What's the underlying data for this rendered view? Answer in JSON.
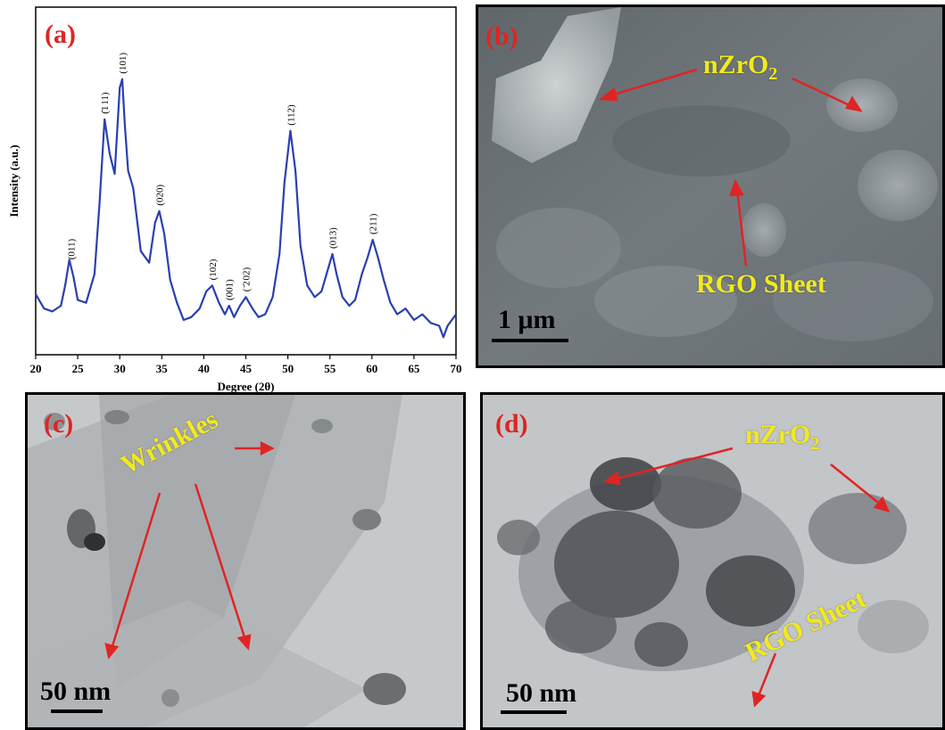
{
  "figure": {
    "panel_a": {
      "label": "(a)",
      "peak_labels": [
        "(011)",
        "(̄1 11)",
        "(101)",
        "(020)",
        "(102)",
        "(001)",
        "( ̄2 02)",
        "(112)",
        "(013)",
        "(211)"
      ]
    },
    "panel_b": {
      "label": "(b)",
      "annotation_particles": "nZrO",
      "annotation_particles_sub": "2",
      "annotation_sheet": "RGO Sheet",
      "scale_label": "1 μm"
    },
    "panel_c": {
      "label": "(c)",
      "annotation_wrinkles": "Wrinkles",
      "scale_label": "50 nm"
    },
    "panel_d": {
      "label": "(d)",
      "annotation_particles": "nZrO",
      "annotation_particles_sub": "2",
      "annotation_sheet": "RGO Sheet",
      "scale_label": "50 nm"
    },
    "colors": {
      "label_red": "#e02424",
      "annotation_yellow": "#f2ea1c",
      "arrow_red": "#e02424",
      "trace_blue": "#2a3fb0"
    }
  },
  "chart_data": {
    "type": "line",
    "title": "",
    "xlabel": "Degree (2θ)",
    "ylabel": "Intensity (a.u.)",
    "xlim": [
      20,
      70
    ],
    "ylim": [
      0,
      100
    ],
    "xticks": [
      20,
      25,
      30,
      35,
      40,
      45,
      50,
      55,
      60,
      65,
      70
    ],
    "y_tick_labels_shown": false,
    "grid": false,
    "series": [
      {
        "name": "",
        "x": [
          20,
          21,
          22,
          23,
          23.5,
          24,
          24.5,
          25,
          26,
          27,
          27.6,
          28.2,
          28.8,
          29.4,
          30.0,
          30.3,
          30.6,
          31.0,
          31.6,
          32.5,
          33.5,
          34.2,
          34.7,
          35.3,
          36.0,
          36.8,
          37.6,
          38.5,
          39.5,
          40.3,
          41.0,
          41.8,
          42.5,
          43.0,
          43.6,
          44.3,
          45.0,
          45.8,
          46.5,
          47.3,
          48.2,
          49.0,
          49.6,
          50.3,
          50.9,
          51.5,
          52.3,
          53.2,
          54.0,
          54.8,
          55.3,
          55.8,
          56.5,
          57.3,
          58.0,
          58.8,
          59.5,
          60.1,
          60.7,
          61.4,
          62.2,
          63.0,
          64.0,
          65.0,
          66.0,
          67.0,
          68.0,
          68.5,
          69.0,
          70.0
        ],
        "y": [
          13,
          8,
          7,
          9,
          16,
          25,
          19,
          11,
          10,
          20,
          45,
          74,
          62,
          55,
          85,
          88,
          72,
          56,
          50,
          28,
          24,
          38,
          42,
          34,
          18,
          10,
          4,
          5,
          8,
          14,
          16,
          10,
          6,
          9,
          5,
          9,
          12,
          8,
          5,
          6,
          12,
          27,
          52,
          70,
          56,
          30,
          16,
          12,
          14,
          22,
          27,
          20,
          12,
          9,
          11,
          20,
          26,
          32,
          26,
          18,
          10,
          6,
          8,
          4,
          6,
          3,
          2,
          -2,
          2,
          6
        ]
      }
    ],
    "peak_annotations": [
      {
        "label": "(011)",
        "x": 24.2
      },
      {
        "label": "(̄1 11)",
        "x": 28.2
      },
      {
        "label": "(101)",
        "x": 30.3
      },
      {
        "label": "(020)",
        "x": 34.7
      },
      {
        "label": "(102)",
        "x": 41.0
      },
      {
        "label": "(001)",
        "x": 43.0
      },
      {
        "label": "( ̄2 02)",
        "x": 45.0
      },
      {
        "label": "(112)",
        "x": 50.3
      },
      {
        "label": "(013)",
        "x": 55.3
      },
      {
        "label": "(211)",
        "x": 60.1
      }
    ]
  }
}
